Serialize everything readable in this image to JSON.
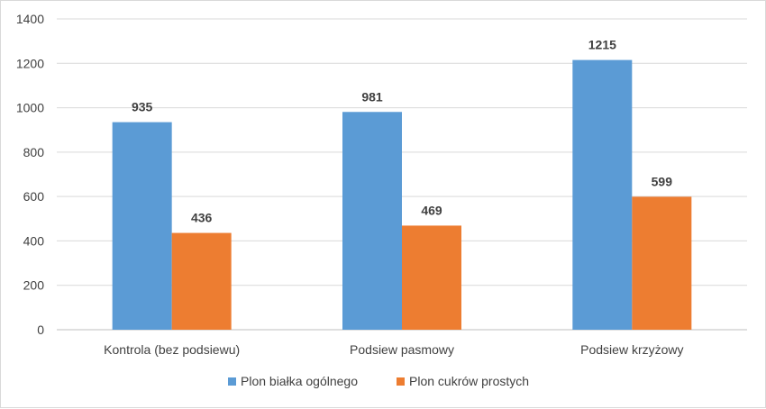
{
  "chart_data": {
    "type": "bar",
    "categories": [
      "Kontrola (bez podsiewu)",
      "Podsiew pasmowy",
      "Podsiew krzyżowy"
    ],
    "series": [
      {
        "name": "Plon białka ogólnego",
        "values": [
          935,
          981,
          1215
        ],
        "color": "#5b9bd5"
      },
      {
        "name": "Plon cukrów prostych",
        "values": [
          436,
          469,
          599
        ],
        "color": "#ed7d31"
      }
    ],
    "yticks": [
      "0",
      "200",
      "400",
      "600",
      "800",
      "1000",
      "1200",
      "1400"
    ],
    "ylim": [
      0,
      1400
    ],
    "grid": true,
    "legend": "bottom",
    "data_labels": true
  }
}
